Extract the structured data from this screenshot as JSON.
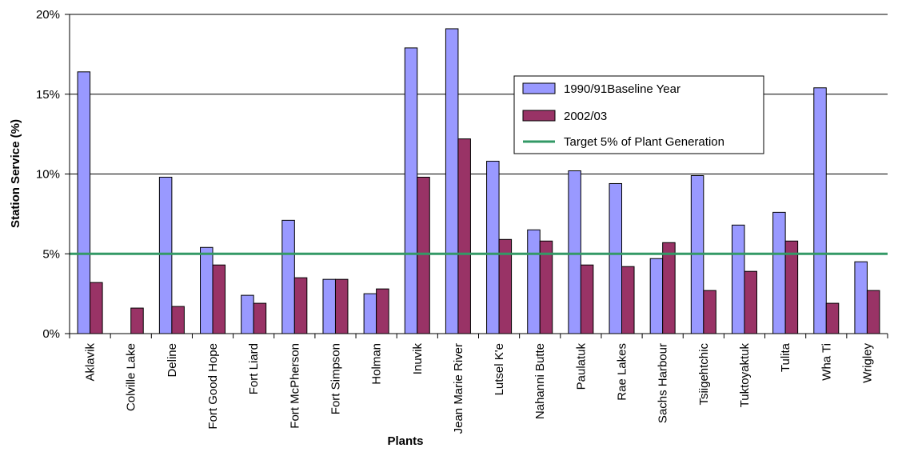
{
  "chart_data": {
    "type": "bar",
    "xlabel": "Plants",
    "ylabel": "Station Service (%)",
    "ylim": [
      0,
      20
    ],
    "yticks": [
      "0%",
      "5%",
      "10%",
      "15%",
      "20%"
    ],
    "grid": true,
    "legend_position": "top-right",
    "categories": [
      "Aklavik",
      "Colville Lake",
      "Deline",
      "Fort Good Hope",
      "Fort Liard",
      "Fort McPherson",
      "Fort Simpson",
      "Holman",
      "Inuvik",
      "Jean Marie River",
      "Lutsel K'e",
      "Nahanni Butte",
      "Paulatuk",
      "Rae Lakes",
      "Sachs Harbour",
      "Tsiigehtchic",
      "Tuktoyaktuk",
      "Tulita",
      "Wha Ti",
      "Wrigley"
    ],
    "series": [
      {
        "name": "1990/91Baseline Year",
        "color": "#9999ff",
        "values": [
          16.4,
          0,
          9.8,
          5.4,
          2.4,
          7.1,
          3.4,
          2.5,
          17.9,
          19.1,
          10.8,
          6.5,
          10.2,
          9.4,
          4.7,
          9.9,
          6.8,
          7.6,
          15.4,
          4.5
        ]
      },
      {
        "name": "2002/03",
        "color": "#993366",
        "values": [
          3.2,
          1.6,
          1.7,
          4.3,
          1.9,
          3.5,
          3.4,
          2.8,
          9.8,
          12.2,
          5.9,
          5.8,
          4.3,
          4.2,
          5.7,
          2.7,
          3.9,
          5.8,
          1.9,
          2.7
        ]
      }
    ],
    "target_line": {
      "name": "Target 5% of Plant Generation",
      "value": 5,
      "color": "#339966"
    }
  }
}
